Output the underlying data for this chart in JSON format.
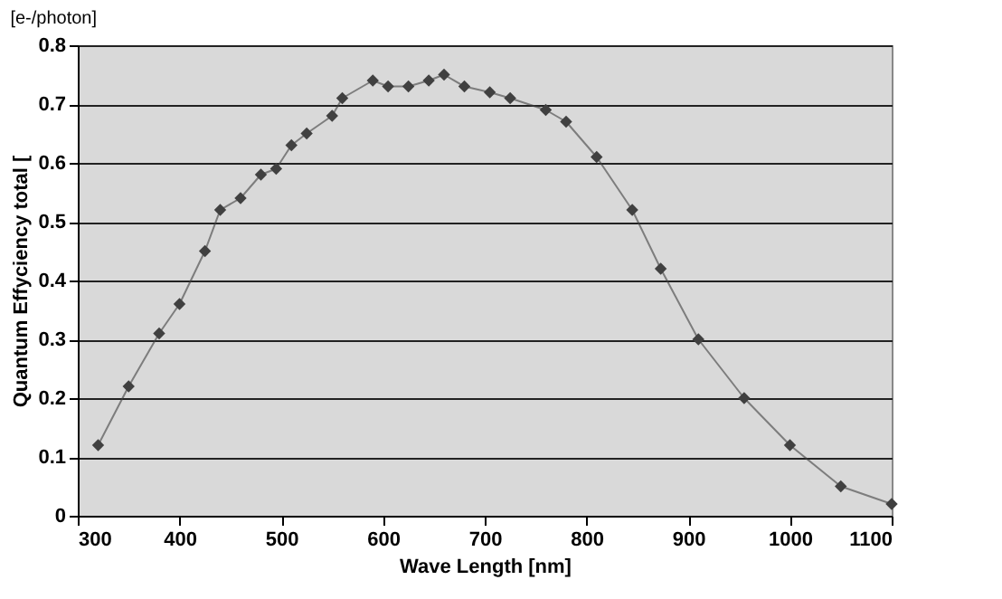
{
  "chart_data": {
    "type": "line",
    "xlabel": "Wave Length [nm]",
    "ylabel": "Quantum Effyciency total [",
    "annotations": [
      "[e-/photon]"
    ],
    "x": [
      320,
      350,
      380,
      400,
      425,
      440,
      460,
      480,
      495,
      510,
      525,
      550,
      560,
      590,
      605,
      625,
      645,
      660,
      680,
      705,
      725,
      760,
      780,
      810,
      845,
      873,
      910,
      955,
      1000,
      1050,
      1100
    ],
    "series": [
      {
        "color": "#404040",
        "values": [
          0.12,
          0.22,
          0.31,
          0.36,
          0.45,
          0.52,
          0.54,
          0.58,
          0.59,
          0.63,
          0.65,
          0.68,
          0.71,
          0.74,
          0.73,
          0.73,
          0.74,
          0.75,
          0.73,
          0.72,
          0.71,
          0.69,
          0.67,
          0.61,
          0.52,
          0.42,
          0.3,
          0.2,
          0.12,
          0.05,
          0.02
        ]
      }
    ],
    "xlim": [
      300,
      1100
    ],
    "xticks": [
      300,
      400,
      500,
      600,
      700,
      800,
      900,
      1000,
      1100
    ],
    "ylim": [
      0,
      0.8
    ],
    "yticks": [
      0,
      0.1,
      0.2,
      0.3,
      0.4,
      0.5,
      0.6,
      0.7,
      0.8
    ],
    "grid": "y",
    "marker": "diamond"
  }
}
